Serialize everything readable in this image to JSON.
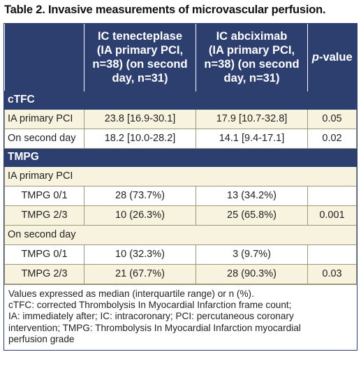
{
  "title": "Table 2. Invasive measurements of microvascular perfusion.",
  "headers": {
    "col1_lines": [
      "IC tenecteplase",
      "(IA primary PCI,",
      "n=38) (on second",
      "day, n=31)"
    ],
    "col2_lines": [
      "IC abciximab",
      "(IA primary PCI,",
      "n=38) (on second",
      "day, n=31)"
    ],
    "col3_italic": "p",
    "col3_rest": "-value"
  },
  "sections": {
    "ctfc": "cTFC",
    "tmpg": "TMPG"
  },
  "ctfc_rows": [
    {
      "label": "IA primary PCI",
      "tenecteplase": "23.8 [16.9-30.1]",
      "abciximab": "17.9 [10.7-32.8]",
      "p": "0.05"
    },
    {
      "label": "On second day",
      "tenecteplase": "18.2 [10.0-28.2]",
      "abciximab": "14.1 [9.4-17.1]",
      "p": "0.02"
    }
  ],
  "tmpg_groups": [
    {
      "label": "IA primary PCI",
      "rows": [
        {
          "label": "TMPG 0/1",
          "tenecteplase": "28 (73.7%)",
          "abciximab": "13 (34.2%)",
          "p": ""
        },
        {
          "label": "TMPG 2/3",
          "tenecteplase": "10 (26.3%)",
          "abciximab": "25 (65.8%)",
          "p": "0.001"
        }
      ]
    },
    {
      "label": "On second day",
      "rows": [
        {
          "label": "TMPG 0/1",
          "tenecteplase": "10 (32.3%)",
          "abciximab": "3 (9.7%)",
          "p": ""
        },
        {
          "label": "TMPG 2/3",
          "tenecteplase": "21 (67.7%)",
          "abciximab": "28 (90.3%)",
          "p": "0.03"
        }
      ]
    }
  ],
  "footnote_lines": [
    "Values expressed as median (interquartile range) or n (%).",
    "cTFC: corrected Thrombolysis In Myocardial Infarction frame count;",
    "IA: immediately after; IC: intracoronary; PCI: percutaneous coronary",
    "intervention; TMPG: Thrombolysis In Myocardial Infarction myocardial",
    "perfusion grade"
  ],
  "colors": {
    "header_bg": "#2d3f6e",
    "cream_bg": "#f7f3df",
    "border": "#9a9a7a"
  }
}
